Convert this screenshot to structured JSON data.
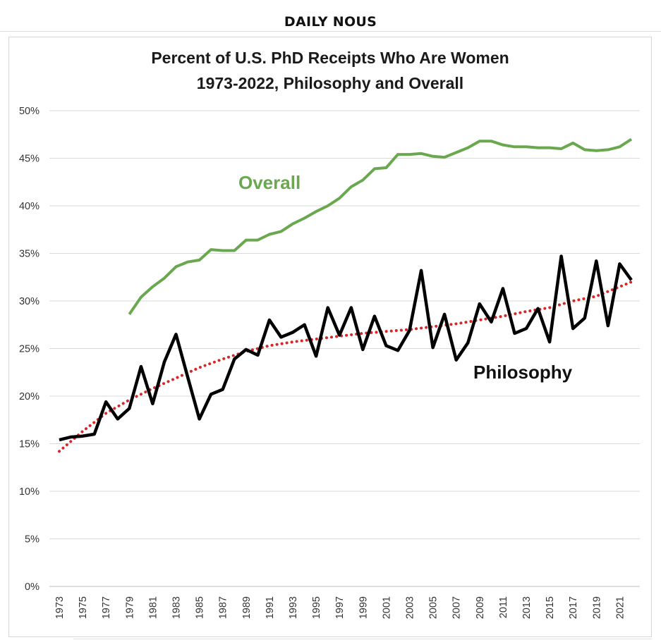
{
  "header": {
    "site_title": "DAILY NOUS"
  },
  "colors": {
    "overall": "#6aa84f",
    "philosophy": "#000000",
    "trend": "#d62728",
    "grid": "#d9d9d9"
  },
  "chart_data": {
    "type": "line",
    "title_lines": [
      "Percent of U.S. PhD Receipts Who Are Women",
      "1973-2022, Philosophy and Overall"
    ],
    "xlabel": "",
    "ylabel": "",
    "ylim": [
      0,
      50
    ],
    "y_ticks": [
      "0%",
      "5%",
      "10%",
      "15%",
      "20%",
      "25%",
      "30%",
      "35%",
      "40%",
      "45%",
      "50%"
    ],
    "x_ticks": [
      "1973",
      "1975",
      "1977",
      "1979",
      "1981",
      "1983",
      "1985",
      "1987",
      "1989",
      "1991",
      "1993",
      "1995",
      "1997",
      "1999",
      "2001",
      "2003",
      "2005",
      "2007",
      "2009",
      "2011",
      "2013",
      "2015",
      "2017",
      "2019",
      "2021"
    ],
    "grid": true,
    "legend": "none",
    "series": [
      {
        "name": "Overall",
        "label": "Overall",
        "style": "solid",
        "x": [
          1979,
          1980,
          1981,
          1982,
          1983,
          1984,
          1985,
          1986,
          1987,
          1988,
          1989,
          1990,
          1991,
          1992,
          1993,
          1994,
          1995,
          1996,
          1997,
          1998,
          1999,
          2000,
          2001,
          2002,
          2003,
          2004,
          2005,
          2006,
          2007,
          2008,
          2009,
          2010,
          2011,
          2012,
          2013,
          2014,
          2015,
          2016,
          2017,
          2018,
          2019,
          2020,
          2021,
          2022
        ],
        "values": [
          28.6,
          30.4,
          31.5,
          32.4,
          33.6,
          34.1,
          34.3,
          35.4,
          35.3,
          35.3,
          36.4,
          36.4,
          37.0,
          37.3,
          38.1,
          38.7,
          39.4,
          40.0,
          40.8,
          42.0,
          42.7,
          43.9,
          44.0,
          45.4,
          45.4,
          45.5,
          45.2,
          45.1,
          45.6,
          46.1,
          46.8,
          46.8,
          46.4,
          46.2,
          46.2,
          46.1,
          46.1,
          46.0,
          46.6,
          45.9,
          45.8,
          45.9,
          46.2,
          47.0
        ]
      },
      {
        "name": "Philosophy",
        "label": "Philosophy",
        "style": "solid",
        "x": [
          1973,
          1974,
          1975,
          1976,
          1977,
          1978,
          1979,
          1980,
          1981,
          1982,
          1983,
          1984,
          1985,
          1986,
          1987,
          1988,
          1989,
          1990,
          1991,
          1992,
          1993,
          1994,
          1995,
          1996,
          1997,
          1998,
          1999,
          2000,
          2001,
          2002,
          2003,
          2004,
          2005,
          2006,
          2007,
          2008,
          2009,
          2010,
          2011,
          2012,
          2013,
          2014,
          2015,
          2016,
          2017,
          2018,
          2019,
          2020,
          2021,
          2022
        ],
        "values": [
          15.4,
          15.7,
          15.8,
          16.0,
          19.4,
          17.6,
          18.7,
          23.1,
          19.2,
          23.6,
          26.5,
          22.0,
          17.6,
          20.2,
          20.7,
          23.9,
          24.9,
          24.3,
          28.0,
          26.2,
          26.7,
          27.5,
          24.2,
          29.3,
          26.4,
          29.3,
          24.9,
          28.4,
          25.3,
          24.8,
          26.9,
          33.2,
          25.1,
          28.6,
          23.8,
          25.6,
          29.7,
          27.8,
          31.3,
          26.6,
          27.1,
          29.2,
          25.7,
          34.7,
          27.1,
          28.2,
          34.2,
          27.4,
          33.9,
          32.2
        ]
      },
      {
        "name": "Philosophy trend",
        "label": "",
        "style": "dotted",
        "x": [
          1973,
          1975,
          1977,
          1979,
          1981,
          1983,
          1985,
          1987,
          1989,
          1991,
          1993,
          1995,
          1997,
          1999,
          2001,
          2003,
          2005,
          2007,
          2009,
          2011,
          2013,
          2015,
          2017,
          2019,
          2022
        ],
        "values": [
          14.2,
          16.3,
          18.2,
          19.6,
          20.8,
          21.9,
          23.0,
          23.9,
          24.7,
          25.3,
          25.7,
          26.0,
          26.3,
          26.6,
          26.8,
          27.0,
          27.3,
          27.6,
          28.0,
          28.4,
          28.9,
          29.3,
          30.0,
          30.5,
          32.0
        ]
      }
    ]
  }
}
